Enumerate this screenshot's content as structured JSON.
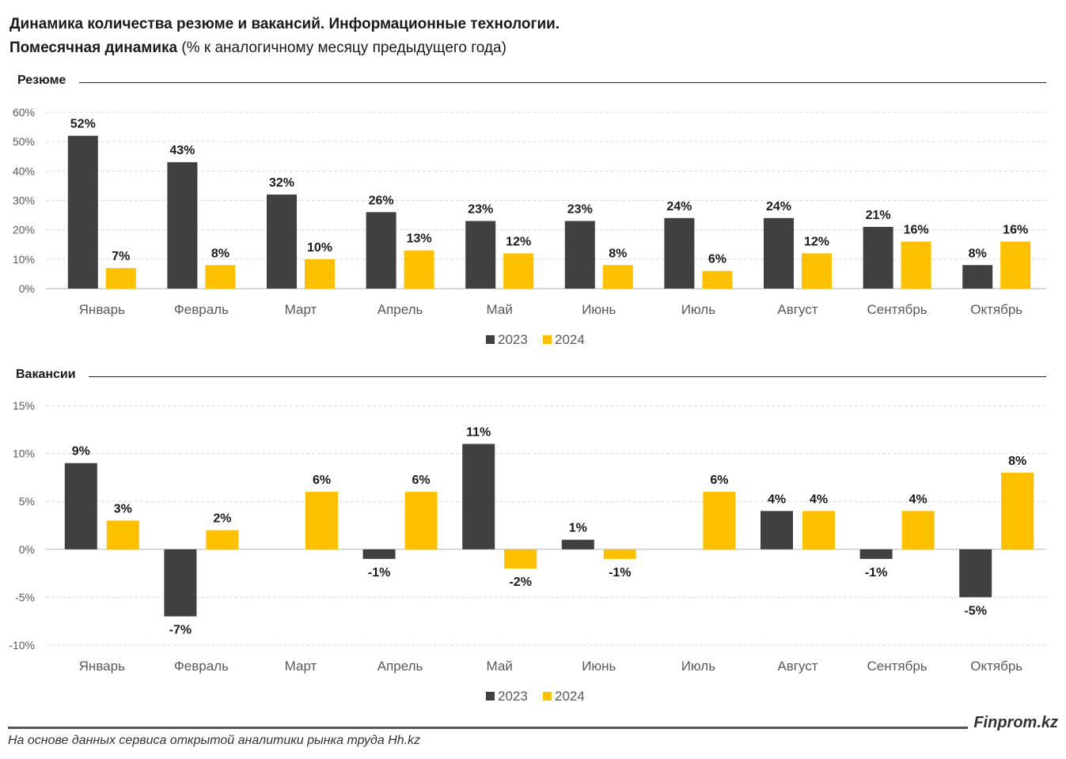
{
  "header": {
    "title": "Динамика количества резюме и вакансий. Информационные технологии.",
    "subtitle_bold": "Помесячная динамика",
    "subtitle_rest": " (% к аналогичному месяцу предыдущего года)"
  },
  "colors": {
    "series_2023": "#404040",
    "series_2024": "#ffc000"
  },
  "chart_data": [
    {
      "type": "bar",
      "title": "Резюме",
      "categories": [
        "Январь",
        "Февраль",
        "Март",
        "Апрель",
        "Май",
        "Июнь",
        "Июль",
        "Август",
        "Сентябрь",
        "Октябрь"
      ],
      "series": [
        {
          "name": "2023",
          "values": [
            52,
            43,
            32,
            26,
            23,
            23,
            24,
            24,
            21,
            8
          ]
        },
        {
          "name": "2024",
          "values": [
            7,
            8,
            10,
            13,
            12,
            8,
            6,
            12,
            16,
            16
          ]
        }
      ],
      "ylim": [
        0,
        60
      ],
      "yticks": [
        0,
        10,
        20,
        30,
        40,
        50,
        60
      ],
      "ytick_labels": [
        "0%",
        "10%",
        "20%",
        "30%",
        "40%",
        "50%",
        "60%"
      ],
      "value_suffix": "%",
      "grid": true,
      "legend": "bottom"
    },
    {
      "type": "bar",
      "title": "Вакансии",
      "categories": [
        "Январь",
        "Февраль",
        "Март",
        "Апрель",
        "Май",
        "Июнь",
        "Июль",
        "Август",
        "Сентябрь",
        "Октябрь"
      ],
      "series": [
        {
          "name": "2023",
          "values": [
            9,
            -7,
            null,
            -1,
            11,
            1,
            null,
            4,
            -1,
            -5
          ]
        },
        {
          "name": "2024",
          "values": [
            3,
            2,
            6,
            6,
            -2,
            -1,
            6,
            4,
            4,
            8
          ]
        }
      ],
      "ylim": [
        -10,
        15
      ],
      "yticks": [
        -10,
        -5,
        0,
        5,
        10,
        15
      ],
      "ytick_labels": [
        "-10%",
        "-5%",
        "0%",
        "5%",
        "10%",
        "15%"
      ],
      "value_suffix": "%",
      "grid": true,
      "legend": "bottom"
    }
  ],
  "footer": {
    "brand": "Finprom.kz",
    "source": "На основе данных сервиса открытой аналитики рынка труда Hh.kz"
  }
}
